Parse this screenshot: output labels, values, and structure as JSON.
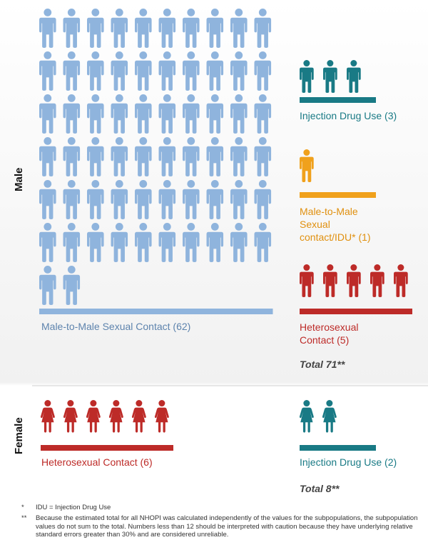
{
  "chart_data": {
    "type": "pictogram",
    "panels": [
      {
        "label": "Male",
        "total": "Total 71**",
        "groups": [
          {
            "label": "Male-to-Male Sexual Contact (62)",
            "value": 62,
            "color": "#8fb4dd",
            "label_color": "#5d83ad"
          },
          {
            "label": "Injection Drug Use (3)",
            "value": 3,
            "color": "#197a85",
            "label_color": "#197a85"
          },
          {
            "label": "Male-to-Male Sexual contact/IDU* (1)",
            "value": 1,
            "color": "#f0a11c",
            "label_color": "#e0900f"
          },
          {
            "label": "Heterosexual Contact (5)",
            "value": 5,
            "color": "#bd2b28",
            "label_color": "#bd2b28"
          }
        ]
      },
      {
        "label": "Female",
        "total": "Total 8**",
        "groups": [
          {
            "label": "Heterosexual Contact (6)",
            "value": 6,
            "color": "#bd2b28",
            "label_color": "#bd2b28"
          },
          {
            "label": "Injection Drug Use (2)",
            "value": 2,
            "color": "#197a85",
            "label_color": "#197a85"
          }
        ]
      }
    ]
  },
  "footnotes": [
    {
      "marker": "*",
      "text": "IDU = Injection Drug Use"
    },
    {
      "marker": "**",
      "text": "Because the estimated total for all NHOPI was calculated independently of the values for the subpopulations, the subpopulation values do not sum to the total. Numbers less than 12 should be interpreted with caution because they have underlying relative standard errors greater than 30% and are considered unreliable."
    }
  ]
}
